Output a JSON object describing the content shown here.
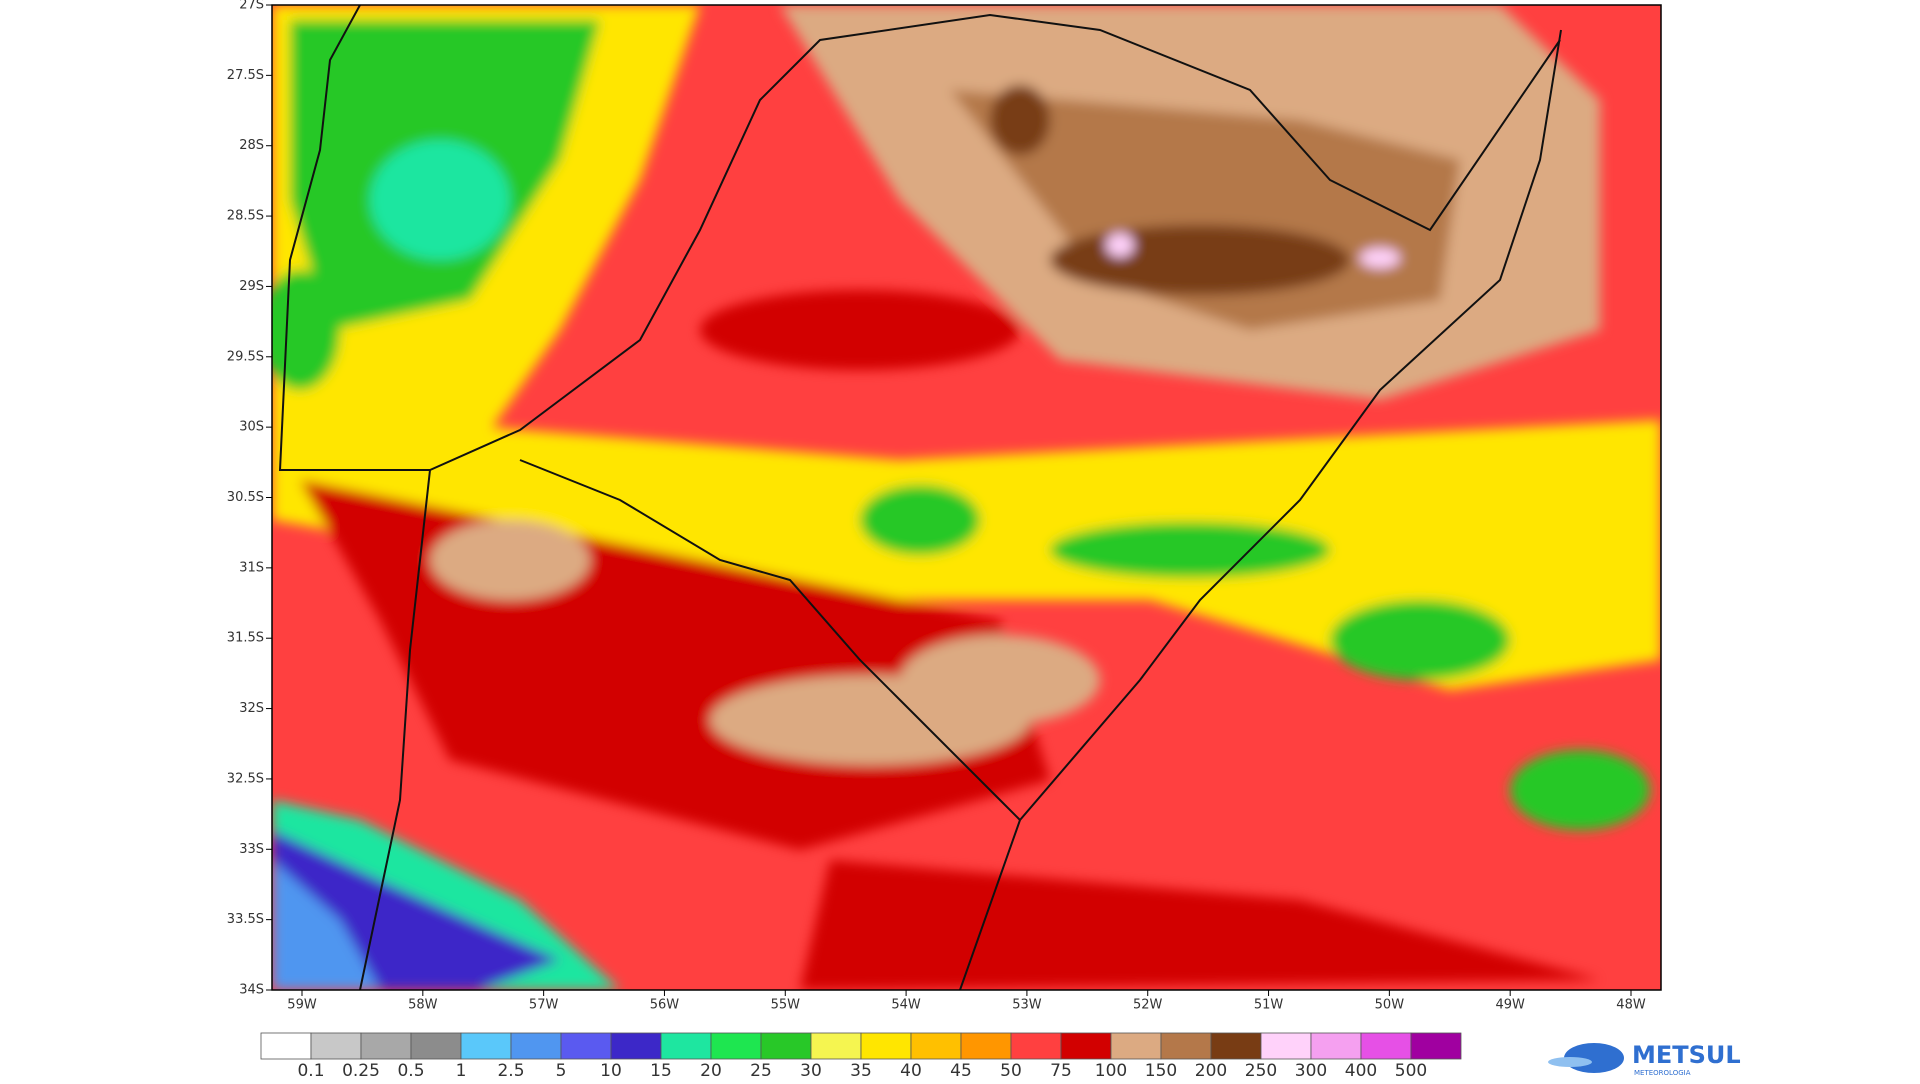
{
  "map": {
    "y_labels": [
      "27S",
      "27.5S",
      "28S",
      "28.5S",
      "29S",
      "29.5S",
      "30S",
      "30.5S",
      "31S",
      "31.5S",
      "32S",
      "32.5S",
      "33S",
      "33.5S",
      "34S"
    ],
    "x_labels": [
      "59W",
      "58W",
      "57W",
      "56W",
      "55W",
      "54W",
      "53W",
      "52W",
      "51W",
      "50W",
      "49W",
      "48W"
    ]
  },
  "legend": {
    "labels": [
      "0.1",
      "0.25",
      "0.5",
      "1",
      "2.5",
      "5",
      "10",
      "15",
      "20",
      "25",
      "30",
      "35",
      "40",
      "45",
      "50",
      "75",
      "100",
      "150",
      "200",
      "250",
      "300",
      "400",
      "500"
    ],
    "colors": [
      "#ffffff",
      "#c8c8c8",
      "#a8a8a8",
      "#8c8c8c",
      "#5ac8fa",
      "#5096f0",
      "#5a5af0",
      "#3c28c8",
      "#1ee6a0",
      "#1ee650",
      "#28c828",
      "#f5f550",
      "#ffe600",
      "#ffc000",
      "#ff9600",
      "#ff4040",
      "#d20000",
      "#dcaa82",
      "#b4784a",
      "#783c14",
      "#ffd2fa",
      "#f5a0f0",
      "#e650e6",
      "#a000a0"
    ]
  },
  "logo": {
    "name": "METSUL",
    "subtitle": "METEOROLOGIA"
  }
}
